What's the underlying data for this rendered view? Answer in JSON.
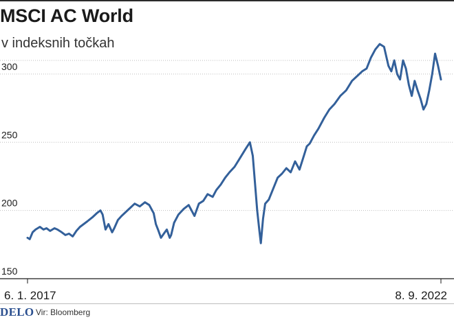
{
  "header": {
    "title": "MSCI AC World",
    "subtitle": "v indeksnih točkah"
  },
  "footer": {
    "logo": "DELO",
    "source": "Vir: Bloomberg"
  },
  "colors": {
    "line": "#33609a",
    "grid": "#bdbdbd",
    "axis": "#1a1a1a"
  },
  "chart_data": {
    "type": "line",
    "title": "MSCI AC World",
    "subtitle": "v indeksnih točkah",
    "ylim": [
      150,
      310
    ],
    "yticks": [
      150,
      200,
      250,
      300
    ],
    "ytick_labels": [
      "150",
      "200",
      "250",
      "300"
    ],
    "x_tick_labels": [
      "6. 1. 2017",
      "8. 9. 2022"
    ],
    "grid": true,
    "legend": "none",
    "series": [
      {
        "x": [
          2017.01,
          2017.04,
          2017.08,
          2017.12,
          2017.18,
          2017.23,
          2017.27,
          2017.32,
          2017.38,
          2017.42,
          2017.48,
          2017.53,
          2017.58,
          2017.63,
          2017.68,
          2017.73,
          2017.78,
          2017.83,
          2017.9,
          2017.96,
          2018.01,
          2018.04,
          2018.08,
          2018.12,
          2018.17,
          2018.2,
          2018.25,
          2018.3,
          2018.36,
          2018.42,
          2018.48,
          2018.55,
          2018.62,
          2018.68,
          2018.74,
          2018.77,
          2018.8,
          2018.84,
          2018.88,
          2018.92,
          2018.96,
          2018.98,
          2019.02,
          2019.08,
          2019.15,
          2019.22,
          2019.3,
          2019.36,
          2019.42,
          2019.48,
          2019.55,
          2019.6,
          2019.66,
          2019.72,
          2019.78,
          2019.85,
          2019.92,
          2020.0,
          2020.06,
          2020.1,
          2020.13,
          2020.16,
          2020.19,
          2020.21,
          2020.24,
          2020.27,
          2020.32,
          2020.38,
          2020.44,
          2020.5,
          2020.56,
          2020.62,
          2020.68,
          2020.74,
          2020.8,
          2020.84,
          2020.88,
          2020.94,
          2021.0,
          2021.08,
          2021.15,
          2021.22,
          2021.3,
          2021.38,
          2021.46,
          2021.54,
          2021.6,
          2021.66,
          2021.72,
          2021.78,
          2021.84,
          2021.9,
          2021.96,
          2022.0,
          2022.04,
          2022.08,
          2022.12,
          2022.16,
          2022.2,
          2022.24,
          2022.28,
          2022.32,
          2022.36,
          2022.4,
          2022.44,
          2022.48,
          2022.52,
          2022.56,
          2022.6,
          2022.64,
          2022.68
        ],
        "y": [
          180,
          179,
          184,
          186,
          188,
          186,
          187,
          185,
          187,
          186,
          184,
          182,
          183,
          181,
          185,
          188,
          190,
          192,
          195,
          198,
          200,
          197,
          186,
          190,
          184,
          187,
          193,
          196,
          199,
          202,
          205,
          203,
          206,
          204,
          198,
          190,
          186,
          180,
          183,
          186,
          180,
          182,
          191,
          197,
          201,
          204,
          196,
          205,
          207,
          212,
          210,
          215,
          219,
          224,
          228,
          232,
          238,
          245,
          250,
          240,
          220,
          200,
          185,
          176,
          194,
          205,
          208,
          216,
          224,
          227,
          231,
          228,
          236,
          230,
          240,
          247,
          249,
          255,
          260,
          268,
          274,
          278,
          284,
          288,
          295,
          299,
          302,
          304,
          312,
          318,
          322,
          320,
          306,
          302,
          310,
          300,
          296,
          310,
          304,
          292,
          284,
          295,
          288,
          282,
          274,
          278,
          288,
          300,
          315,
          306,
          296
        ]
      }
    ]
  }
}
